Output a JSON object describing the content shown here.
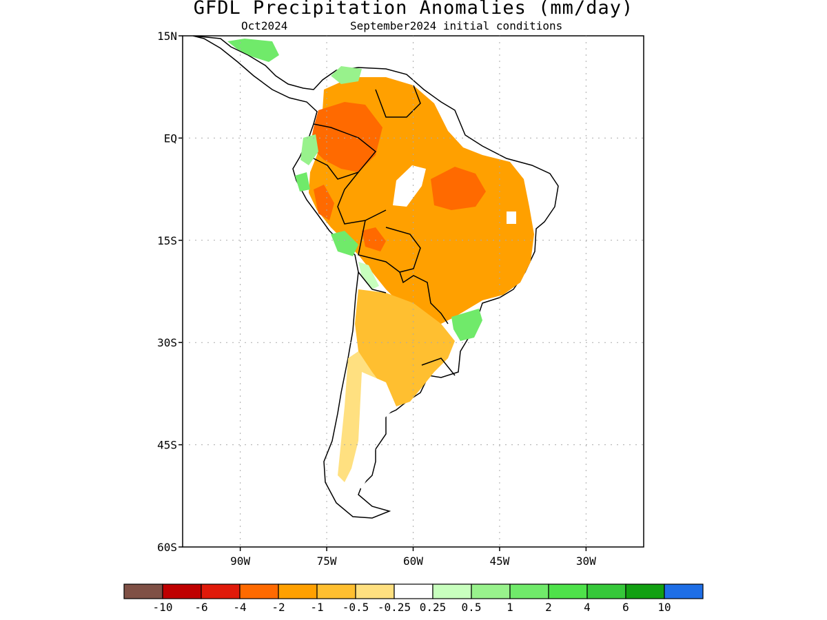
{
  "header": {
    "title": "GFDL Precipitation Anomalies (mm/day)",
    "month": "Oct2024",
    "init": "September2024 initial conditions"
  },
  "axes": {
    "lat_labels": [
      "15N",
      "EQ",
      "15S",
      "30S",
      "45S",
      "60S"
    ],
    "lon_labels": [
      "90W",
      "75W",
      "60W",
      "45W",
      "30W"
    ],
    "lat_extent": [
      -60,
      15
    ],
    "lon_extent": [
      -100,
      -20
    ]
  },
  "legend": {
    "labels": [
      "-10",
      "-6",
      "-4",
      "-2",
      "-1",
      "-0.5",
      "-0.25",
      "0.25",
      "0.5",
      "1",
      "2",
      "4",
      "6",
      "10"
    ],
    "colors": [
      "#7f5045",
      "#bf0000",
      "#e01a0a",
      "#ff6a00",
      "#ffa000",
      "#ffbf30",
      "#ffe080",
      "#ffffff",
      "#c8ffbe",
      "#98f28c",
      "#70ea6a",
      "#4ee24a",
      "#36c83a",
      "#12a012",
      "#1e6ee6"
    ]
  },
  "colors": {
    "land_outline": "#000000",
    "grid": "#aaaaaa"
  }
}
